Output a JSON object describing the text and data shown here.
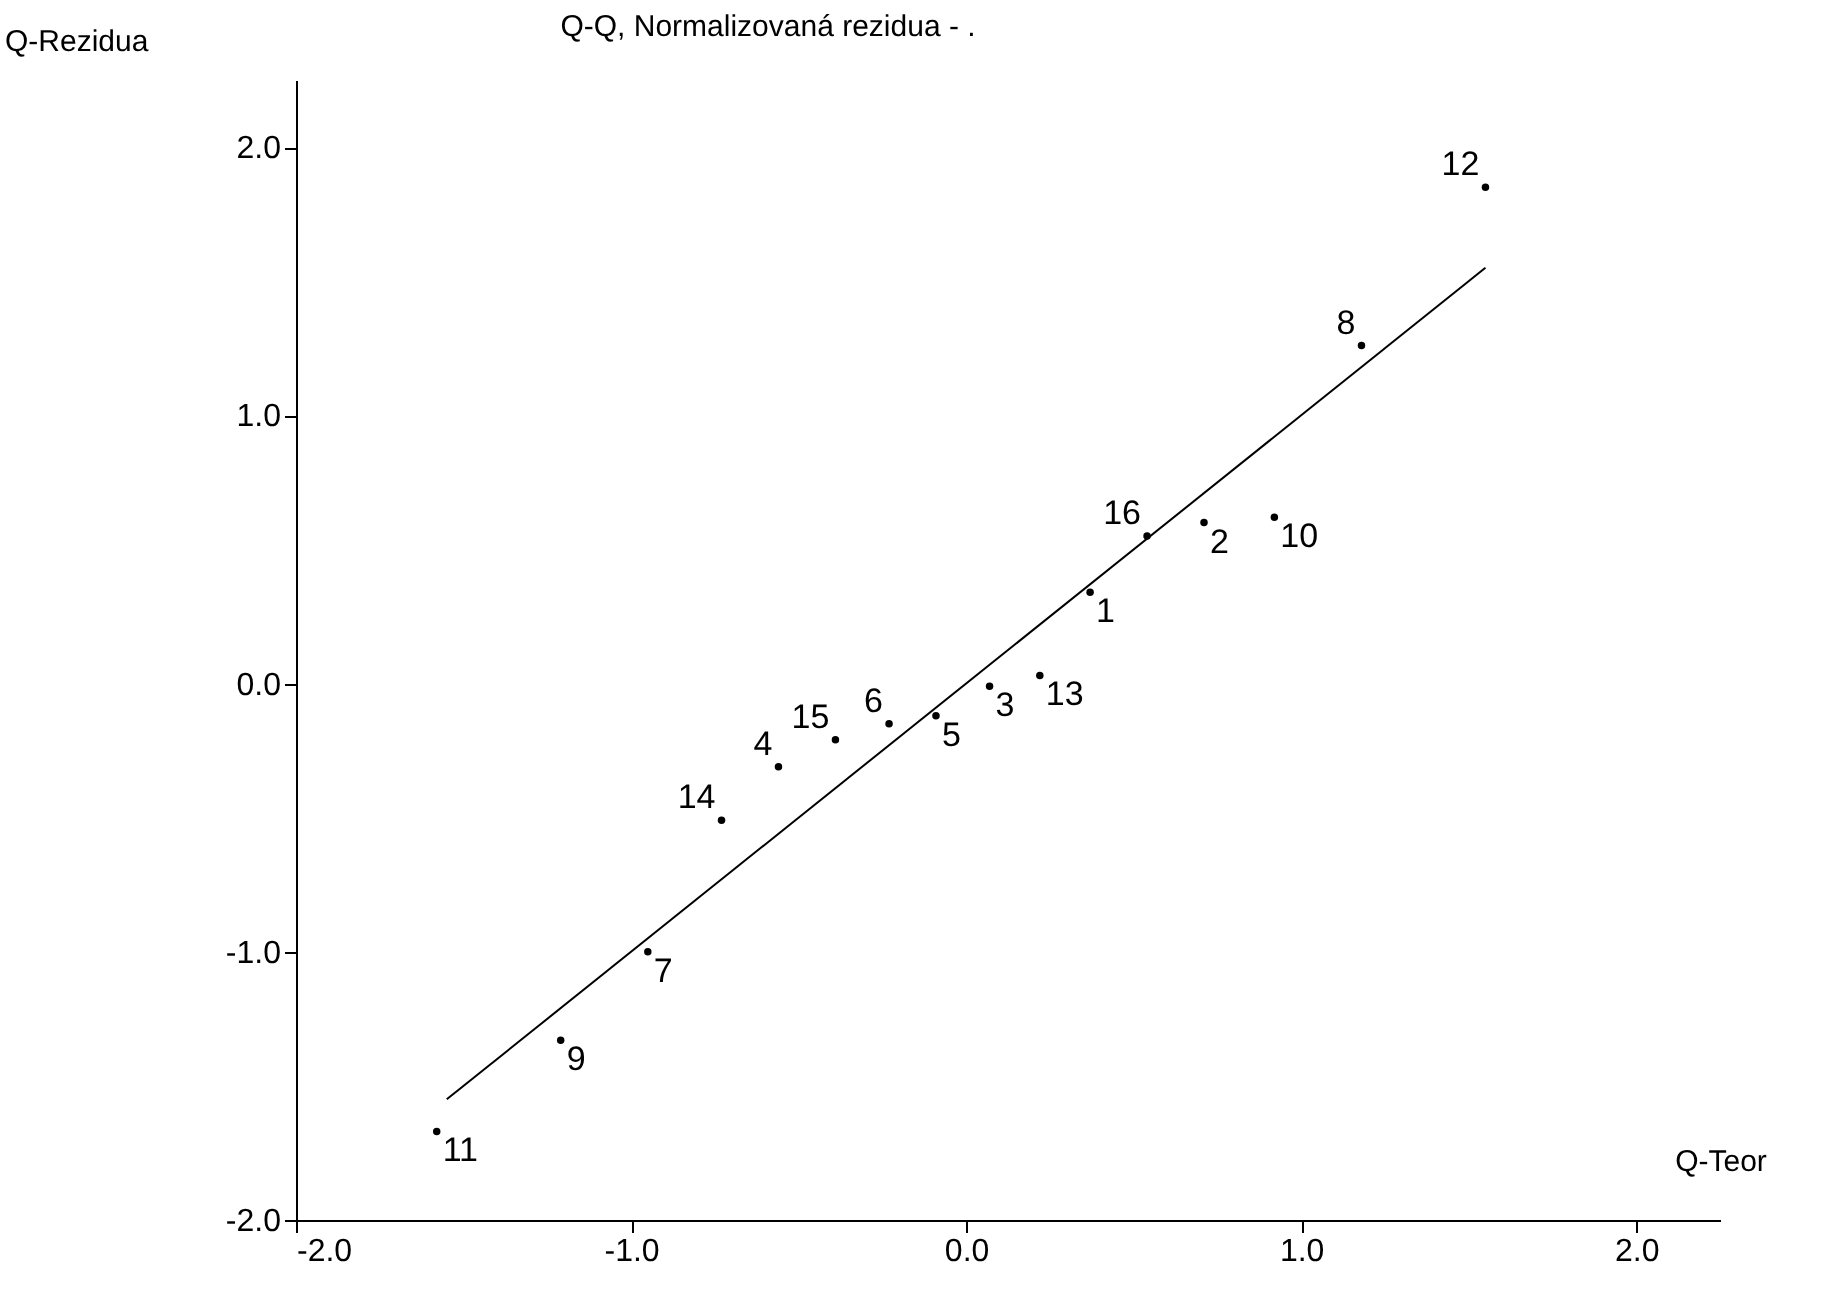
{
  "chart_data": {
    "type": "scatter",
    "title": "Q-Q, Normalizovaná rezidua - .",
    "xlabel": "Q-Teor",
    "ylabel": "Q-Rezidua",
    "xlim": [
      -2,
      2.25
    ],
    "ylim": [
      -2,
      2.25
    ],
    "xticks": [
      {
        "value": -2,
        "label": "-2.0"
      },
      {
        "value": -1,
        "label": "-1.0"
      },
      {
        "value": 0,
        "label": "0.0"
      },
      {
        "value": 1,
        "label": "1.0"
      },
      {
        "value": 2,
        "label": "2.0"
      }
    ],
    "yticks": [
      {
        "value": -2,
        "label": "-2.0"
      },
      {
        "value": -1,
        "label": "-1.0"
      },
      {
        "value": 0,
        "label": "0.0"
      },
      {
        "value": 1,
        "label": "1.0"
      },
      {
        "value": 2,
        "label": "2.0"
      }
    ],
    "grid": false,
    "marker": "circle",
    "series": [
      {
        "color": "#000000",
        "x": [
          -1.58,
          -1.21,
          -0.95,
          -0.73,
          -0.56,
          -0.39,
          -0.23,
          -0.09,
          0.07,
          0.22,
          0.37,
          0.54,
          0.71,
          0.92,
          1.18,
          1.55
        ],
        "values": [
          -1.67,
          -1.33,
          -1.0,
          -0.51,
          -0.31,
          -0.21,
          -0.15,
          -0.12,
          -0.01,
          0.03,
          0.34,
          0.55,
          0.6,
          0.62,
          1.26,
          1.85
        ]
      },
      {
        "type": "line",
        "marker": "none",
        "color": "#000000",
        "x": [
          -1.55,
          1.55
        ],
        "values": [
          -1.55,
          1.55
        ]
      }
    ],
    "annotations": [
      {
        "text": "11",
        "x": -1.58,
        "y": -1.67
      },
      {
        "text": "9",
        "x": -1.21,
        "y": -1.33
      },
      {
        "text": "7",
        "x": -0.95,
        "y": -1.0
      },
      {
        "text": "14",
        "x": -0.73,
        "y": -0.51
      },
      {
        "text": "4",
        "x": -0.56,
        "y": -0.31
      },
      {
        "text": "15",
        "x": -0.39,
        "y": -0.21
      },
      {
        "text": "6",
        "x": -0.23,
        "y": -0.15
      },
      {
        "text": "5",
        "x": -0.09,
        "y": -0.12
      },
      {
        "text": "3",
        "x": 0.07,
        "y": -0.01
      },
      {
        "text": "13",
        "x": 0.22,
        "y": 0.03
      },
      {
        "text": "1",
        "x": 0.37,
        "y": 0.34
      },
      {
        "text": "16",
        "x": 0.54,
        "y": 0.55
      },
      {
        "text": "2",
        "x": 0.71,
        "y": 0.6
      },
      {
        "text": "10",
        "x": 0.92,
        "y": 0.62
      },
      {
        "text": "8",
        "x": 1.18,
        "y": 1.26
      },
      {
        "text": "12",
        "x": 1.55,
        "y": 1.85
      }
    ]
  }
}
